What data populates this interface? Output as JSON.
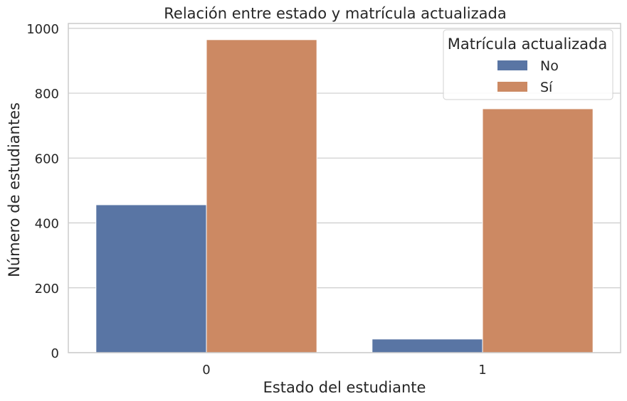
{
  "chart_data": {
    "type": "bar",
    "title": "Relación entre estado y matrícula actualizada",
    "xlabel": "Estado del estudiante",
    "ylabel": "Número de estudiantes",
    "categories": [
      "0",
      "1"
    ],
    "series": [
      {
        "name": "No",
        "values": [
          456,
          42
        ],
        "color": "#5975a4"
      },
      {
        "name": "Sí",
        "values": [
          965,
          752
        ],
        "color": "#cc8963"
      }
    ],
    "ylim": [
      0,
      1015
    ],
    "yticks": [
      0,
      200,
      400,
      600,
      800,
      1000
    ],
    "grid": true,
    "legend": {
      "title": "Matrícula actualizada",
      "placement": "top-right"
    }
  }
}
